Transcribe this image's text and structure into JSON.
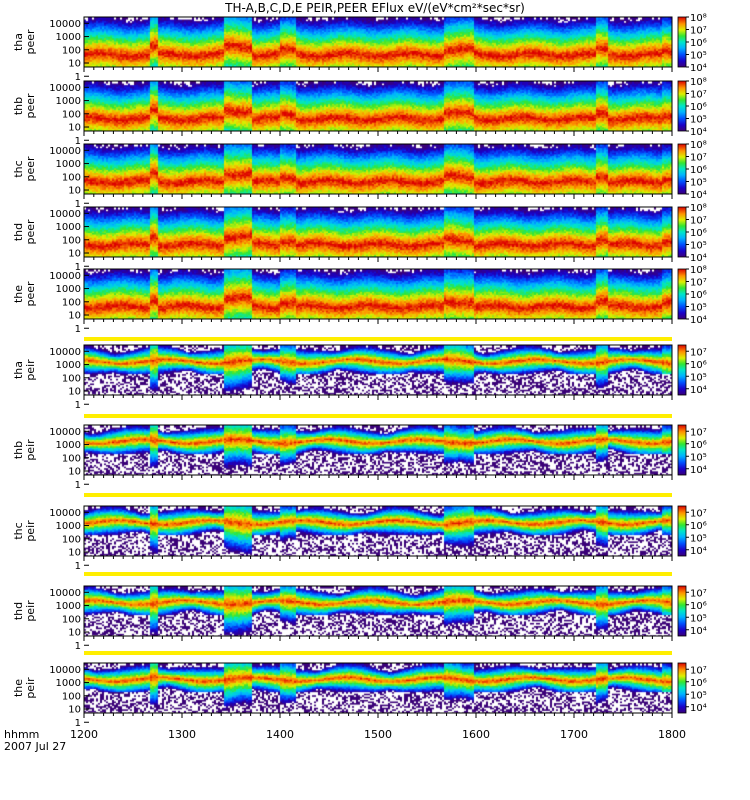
{
  "chart_data": {
    "type": "heatmap",
    "title": "TH-A,B,C,D,E PEIR,PEER EFlux eV/(eV*cm²*sec*sr)",
    "date_label": "2007 Jul 27",
    "xlabel": "hhmm",
    "xlim": [
      1200,
      1800
    ],
    "x_ticks": [
      "1200",
      "1300",
      "1400",
      "1500",
      "1600",
      "1700",
      "1800"
    ],
    "y_scale": "log",
    "ylim_eV": [
      5,
      30000
    ],
    "y_ticks": [
      "10000",
      "1000",
      "100",
      "10",
      "1"
    ],
    "colorscale": "rainbow (purple-blue-cyan-green-yellow-red)",
    "panels": [
      {
        "probe": "tha",
        "species": "peer",
        "ylabel": [
          "tha",
          "peer"
        ],
        "cbar_ticks": [
          "10⁸",
          "10⁷",
          "10⁶",
          "10⁵",
          "10⁴"
        ],
        "cbar_range_log": [
          4,
          8
        ]
      },
      {
        "probe": "thb",
        "species": "peer",
        "ylabel": [
          "thb",
          "peer"
        ],
        "cbar_ticks": [
          "10⁸",
          "10⁷",
          "10⁶",
          "10⁵",
          "10⁴"
        ],
        "cbar_range_log": [
          4,
          8
        ]
      },
      {
        "probe": "thc",
        "species": "peer",
        "ylabel": [
          "thc",
          "peer"
        ],
        "cbar_ticks": [
          "10⁸",
          "10⁷",
          "10⁶",
          "10⁵",
          "10⁴"
        ],
        "cbar_range_log": [
          4,
          8
        ]
      },
      {
        "probe": "thd",
        "species": "peer",
        "ylabel": [
          "thd",
          "peer"
        ],
        "cbar_ticks": [
          "10⁸",
          "10⁷",
          "10⁶",
          "10⁵",
          "10⁴"
        ],
        "cbar_range_log": [
          4,
          8
        ]
      },
      {
        "probe": "the",
        "species": "peer",
        "ylabel": [
          "the",
          "peer"
        ],
        "cbar_ticks": [
          "10⁸",
          "10⁷",
          "10⁶",
          "10⁵",
          "10⁴"
        ],
        "cbar_range_log": [
          4,
          8
        ]
      },
      {
        "probe": "tha",
        "species": "peir",
        "ylabel": [
          "tha",
          "peir"
        ],
        "cbar_ticks": [
          "10⁷",
          "10⁶",
          "10⁵",
          "10⁴"
        ],
        "cbar_range_log": [
          3.5,
          7.5
        ]
      },
      {
        "probe": "thb",
        "species": "peir",
        "ylabel": [
          "thb",
          "peir"
        ],
        "cbar_ticks": [
          "10⁷",
          "10⁶",
          "10⁵",
          "10⁴"
        ],
        "cbar_range_log": [
          3.5,
          7.5
        ]
      },
      {
        "probe": "thc",
        "species": "peir",
        "ylabel": [
          "thc",
          "peir"
        ],
        "cbar_ticks": [
          "10⁷",
          "10⁶",
          "10⁵",
          "10⁴"
        ],
        "cbar_range_log": [
          3.5,
          7.5
        ]
      },
      {
        "probe": "thd",
        "species": "peir",
        "ylabel": [
          "thd",
          "peir"
        ],
        "cbar_ticks": [
          "10⁷",
          "10⁶",
          "10⁵",
          "10⁴"
        ],
        "cbar_range_log": [
          3.5,
          7.5
        ]
      },
      {
        "probe": "the",
        "species": "peir",
        "ylabel": [
          "the",
          "peir"
        ],
        "cbar_ticks": [
          "10⁷",
          "10⁶",
          "10⁵",
          "10⁴"
        ],
        "cbar_range_log": [
          3.5,
          7.5
        ]
      }
    ]
  }
}
